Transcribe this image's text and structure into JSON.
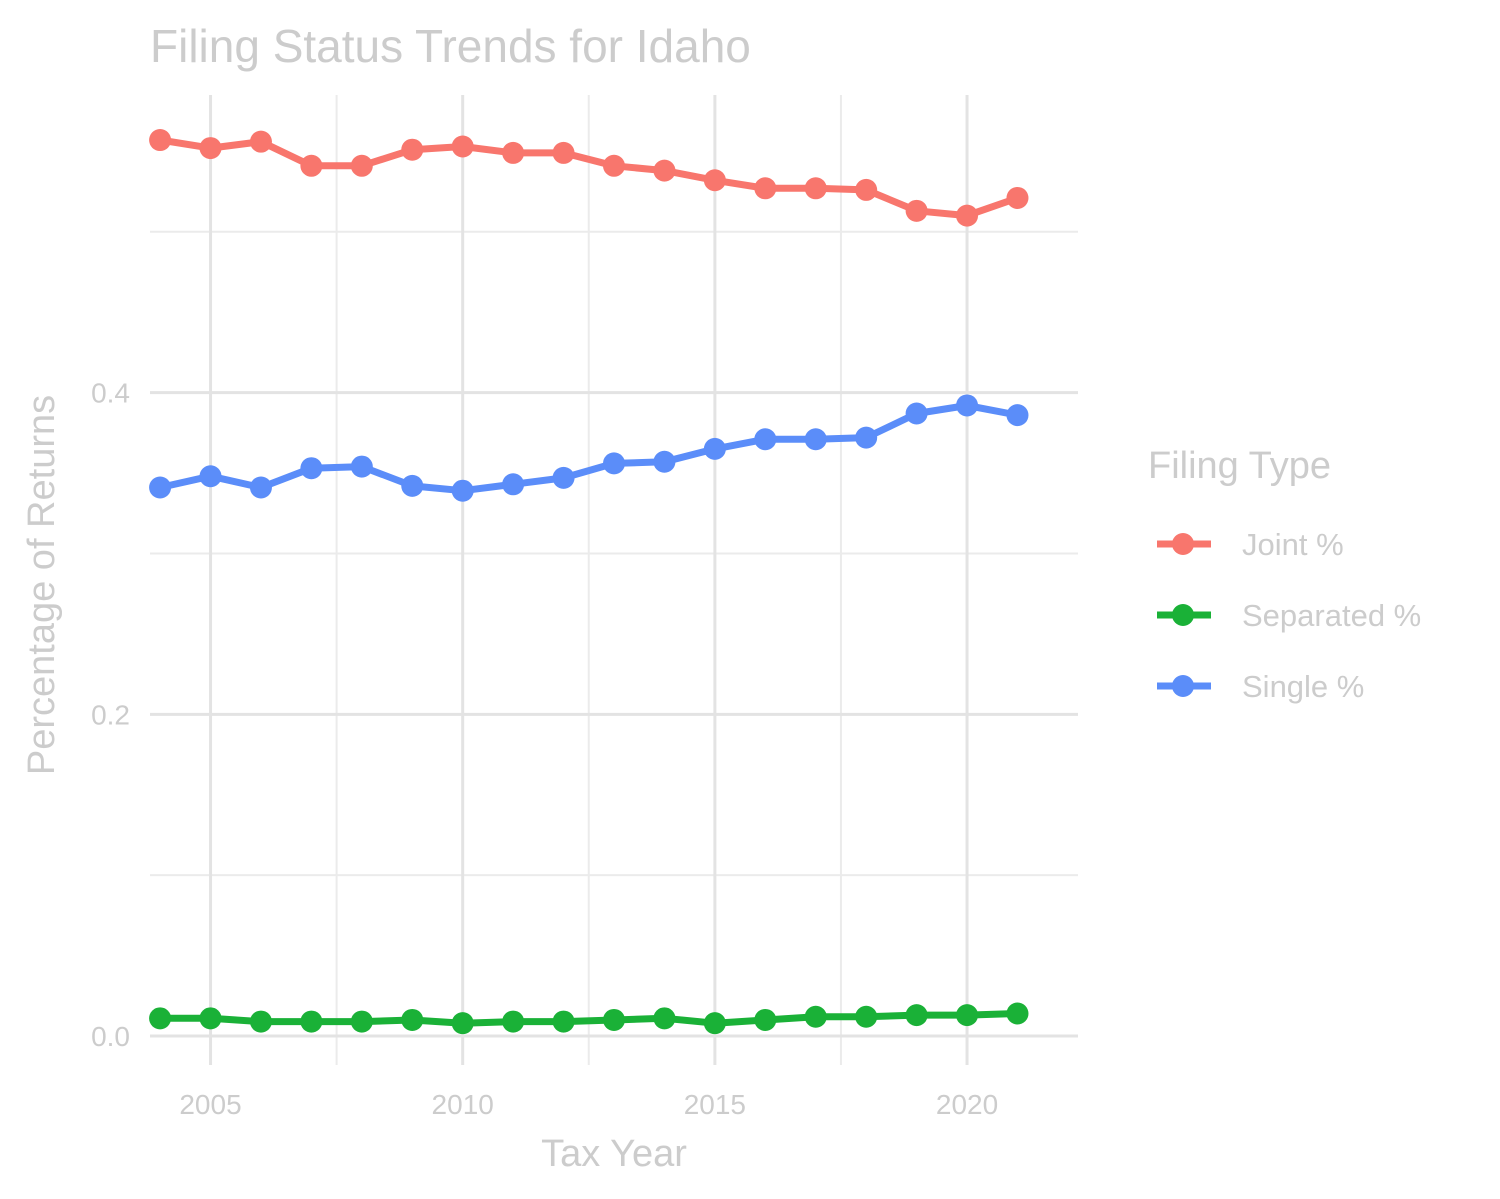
{
  "chart_data": {
    "type": "line",
    "title": "Filing Status Trends for Idaho",
    "xlabel": "Tax Year",
    "ylabel": "Percentage of Returns",
    "xlim": [
      2003.8,
      2022.2
    ],
    "ylim": [
      -0.018,
      0.585
    ],
    "x_ticks": [
      2005,
      2010,
      2015,
      2020
    ],
    "x_tick_labels": [
      "2005",
      "2010",
      "2015",
      "2020"
    ],
    "y_ticks": [
      0.0,
      0.2,
      0.4
    ],
    "y_tick_labels": [
      "0.0",
      "0.2",
      "0.4"
    ],
    "x_minor_ticks": [
      2007.5,
      2012.5,
      2017.5
    ],
    "y_minor_ticks": [
      0.1,
      0.3,
      0.5
    ],
    "grid": true,
    "legend": {
      "title": "Filing Type",
      "position": "right"
    },
    "x": [
      2004,
      2005,
      2006,
      2007,
      2008,
      2009,
      2010,
      2011,
      2012,
      2013,
      2014,
      2015,
      2016,
      2017,
      2018,
      2019,
      2020,
      2021
    ],
    "series": [
      {
        "name": "Joint %",
        "color": "#F8766D",
        "values": [
          0.557,
          0.552,
          0.556,
          0.541,
          0.541,
          0.551,
          0.553,
          0.549,
          0.549,
          0.541,
          0.538,
          0.532,
          0.527,
          0.527,
          0.526,
          0.513,
          0.51,
          0.521
        ]
      },
      {
        "name": "Separated %",
        "color": "#1AB137",
        "values": [
          0.011,
          0.011,
          0.009,
          0.009,
          0.009,
          0.01,
          0.008,
          0.009,
          0.009,
          0.01,
          0.011,
          0.008,
          0.01,
          0.012,
          0.012,
          0.013,
          0.013,
          0.014
        ]
      },
      {
        "name": "Single %",
        "color": "#5B8DF9",
        "values": [
          0.341,
          0.348,
          0.341,
          0.353,
          0.354,
          0.342,
          0.339,
          0.343,
          0.347,
          0.356,
          0.357,
          0.365,
          0.371,
          0.371,
          0.372,
          0.387,
          0.392,
          0.386
        ]
      }
    ]
  }
}
